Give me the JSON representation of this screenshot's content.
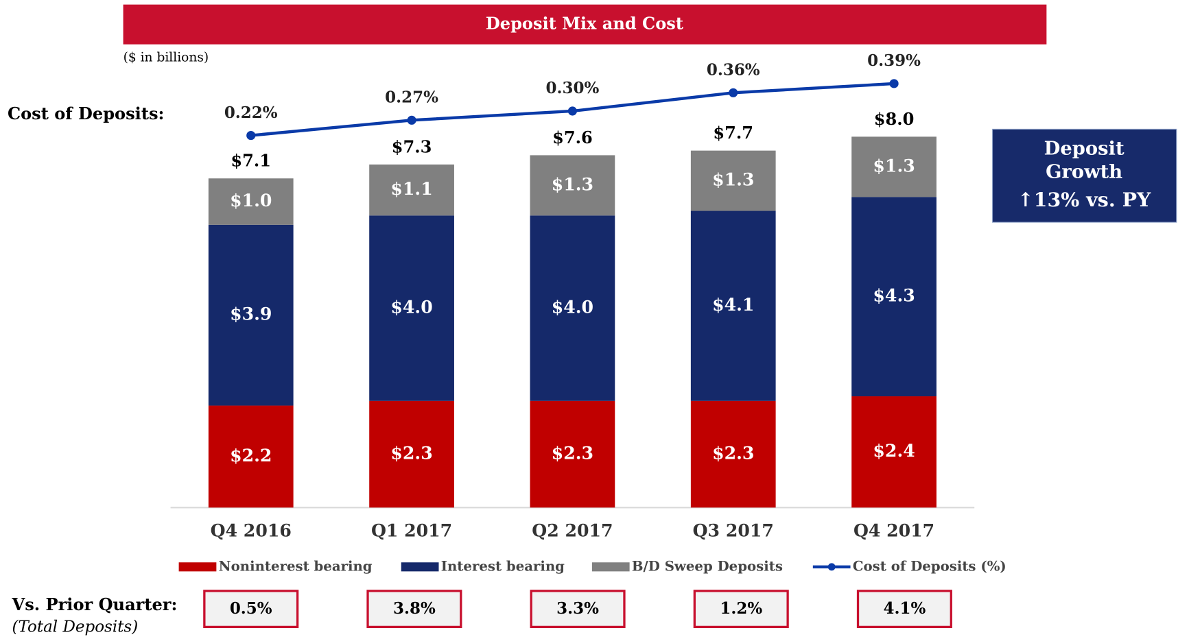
{
  "chart_data": {
    "type": "bar",
    "stacked": true,
    "title": "Deposit Mix and Cost",
    "subtitle": "($ in billions)",
    "line_axis_label": "Cost of Deposits:",
    "categories": [
      "Q4 2016",
      "Q1 2017",
      "Q2 2017",
      "Q3 2017",
      "Q4 2017"
    ],
    "series": [
      {
        "name": "Noninterest bearing",
        "color": "#c00000",
        "values": [
          2.2,
          2.3,
          2.3,
          2.3,
          2.4
        ],
        "value_labels": [
          "$2.2",
          "$2.3",
          "$2.3",
          "$2.3",
          "$2.4"
        ]
      },
      {
        "name": "Interest bearing",
        "color": "#15296a",
        "values": [
          3.9,
          4.0,
          4.0,
          4.1,
          4.3
        ],
        "value_labels": [
          "$3.9",
          "$4.0",
          "$4.0",
          "$4.1",
          "$4.3"
        ]
      },
      {
        "name": "B/D Sweep Deposits",
        "color": "#808080",
        "values": [
          1.0,
          1.1,
          1.3,
          1.3,
          1.3
        ],
        "value_labels": [
          "$1.0",
          "$1.1",
          "$1.3",
          "$1.3",
          "$1.3"
        ]
      },
      {
        "name": "Cost of Deposits (%)",
        "type": "line",
        "axis": "y2",
        "color": "#0a3aa8",
        "values": [
          0.22,
          0.27,
          0.3,
          0.36,
          0.39
        ],
        "value_labels": [
          "0.22%",
          "0.27%",
          "0.30%",
          "0.36%",
          "0.39%"
        ]
      }
    ],
    "totals": [
      7.1,
      7.3,
      7.6,
      7.7,
      8.0
    ],
    "total_labels": [
      "$7.1",
      "$7.3",
      "$7.6",
      "$7.7",
      "$8.0"
    ],
    "ylim": [
      0,
      10
    ],
    "y2lim": [
      -1,
      0.52
    ],
    "legend": "bottom",
    "callout": {
      "lines": [
        "Deposit",
        "Growth"
      ],
      "change": "↑13% vs. PY"
    },
    "prior_quarter": {
      "label": "Vs. Prior Quarter:",
      "note": "(Total Deposits)",
      "values": [
        "0.5%",
        "3.8%",
        "3.3%",
        "1.2%",
        "4.1%"
      ]
    }
  }
}
